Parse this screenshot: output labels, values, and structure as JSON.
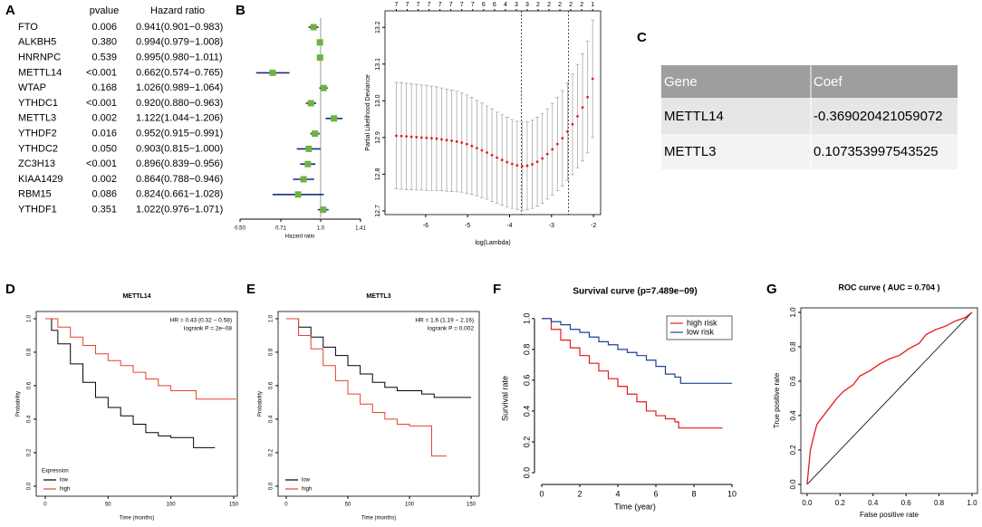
{
  "panels": [
    "A",
    "B",
    "C",
    "D",
    "E",
    "F",
    "G"
  ],
  "chart_data": [
    {
      "type": "forest",
      "headers": [
        "pvalue",
        "Hazard ratio"
      ],
      "categories": [
        "FTO",
        "ALKBH5",
        "HNRNPC",
        "METTL14",
        "WTAP",
        "YTHDC1",
        "METTL3",
        "YTHDF2",
        "YTHDC2",
        "ZC3H13",
        "KIAA1429",
        "RBM15",
        "YTHDF1"
      ],
      "pvalues": [
        "0.006",
        "0.380",
        "0.539",
        "<0.001",
        "0.168",
        "<0.001",
        "0.002",
        "0.016",
        "0.050",
        "<0.001",
        "0.002",
        "0.086",
        "0.351"
      ],
      "values": [
        0.941,
        0.994,
        0.995,
        0.662,
        1.026,
        0.92,
        1.122,
        0.952,
        0.903,
        0.896,
        0.864,
        0.824,
        1.022
      ],
      "lower": [
        0.901,
        0.979,
        0.98,
        0.574,
        0.989,
        0.88,
        1.044,
        0.915,
        0.815,
        0.839,
        0.788,
        0.661,
        0.976
      ],
      "upper": [
        0.983,
        1.008,
        1.011,
        0.765,
        1.064,
        0.963,
        1.206,
        0.991,
        1.0,
        0.956,
        0.946,
        1.028,
        1.071
      ],
      "value_labels": [
        "0.941(0.901−0.983)",
        "0.994(0.979−1.008)",
        "0.995(0.980−1.011)",
        "0.662(0.574−0.765)",
        "1.026(0.989−1.064)",
        "0.920(0.880−0.963)",
        "1.122(1.044−1.206)",
        "0.952(0.915−0.991)",
        "0.903(0.815−1.000)",
        "0.896(0.839−0.956)",
        "0.864(0.788−0.946)",
        "0.824(0.661−1.028)",
        "1.022(0.976−1.071)"
      ],
      "xlim": [
        0.5,
        1.41
      ],
      "log_x": true,
      "xticks": [
        {
          "value": 0.5,
          "label": "0.50"
        },
        0.71,
        {
          "value": 1,
          "label": "1.0"
        },
        1.41
      ],
      "reference": 1,
      "xlabel": "Hazard ratio",
      "color": "#6db33f",
      "ci_color": "#1f2a80"
    },
    {
      "type": "cv",
      "xlabel": "log(Lambda)",
      "ylabel": "Partial Likelihood Deviance",
      "x": [
        -6.7,
        -6.58,
        -6.46,
        -6.34,
        -6.22,
        -6.1,
        -5.98,
        -5.86,
        -5.74,
        -5.62,
        -5.5,
        -5.38,
        -5.26,
        -5.14,
        -5.02,
        -4.9,
        -4.78,
        -4.66,
        -4.54,
        -4.42,
        -4.3,
        -4.18,
        -4.06,
        -3.94,
        -3.82,
        -3.7,
        -3.58,
        -3.46,
        -3.34,
        -3.22,
        -3.1,
        -2.98,
        -2.86,
        -2.74,
        -2.62,
        -2.5,
        -2.38,
        -2.26,
        -2.14,
        -2.02
      ],
      "values": [
        12.905,
        12.904,
        12.903,
        12.902,
        12.901,
        12.9,
        12.899,
        12.898,
        12.897,
        12.895,
        12.893,
        12.891,
        12.889,
        12.886,
        12.882,
        12.877,
        12.871,
        12.865,
        12.859,
        12.852,
        12.845,
        12.839,
        12.833,
        12.828,
        12.824,
        12.822,
        12.823,
        12.827,
        12.834,
        12.843,
        12.855,
        12.868,
        12.882,
        12.898,
        12.916,
        12.936,
        12.958,
        12.982,
        13.01,
        13.06
      ],
      "errors": [
        0.145,
        0.145,
        0.145,
        0.144,
        0.144,
        0.143,
        0.143,
        0.142,
        0.141,
        0.14,
        0.139,
        0.138,
        0.137,
        0.135,
        0.134,
        0.132,
        0.13,
        0.129,
        0.127,
        0.126,
        0.124,
        0.123,
        0.122,
        0.121,
        0.12,
        0.12,
        0.12,
        0.12,
        0.121,
        0.122,
        0.123,
        0.125,
        0.127,
        0.13,
        0.133,
        0.137,
        0.141,
        0.146,
        0.152,
        0.16
      ],
      "xlim": [
        -6.97,
        -1.83
      ],
      "ylim": [
        12.69,
        13.245
      ],
      "xticks": [
        -6,
        -5,
        -4,
        -3,
        -2
      ],
      "yticks": [
        12.7,
        12.8,
        12.9,
        {
          "value": 13,
          "label": "13.0"
        },
        13.1,
        13.2
      ],
      "top_ticks": [
        {
          "value": -6.7,
          "label": "7"
        },
        {
          "value": -6.44,
          "label": "7"
        },
        {
          "value": -6.18,
          "label": "7"
        },
        {
          "value": -5.92,
          "label": "7"
        },
        {
          "value": -5.66,
          "label": "7"
        },
        {
          "value": -5.4,
          "label": "7"
        },
        {
          "value": -5.14,
          "label": "7"
        },
        {
          "value": -4.88,
          "label": "7"
        },
        {
          "value": -4.62,
          "label": "6"
        },
        {
          "value": -4.36,
          "label": "6"
        },
        {
          "value": -4.1,
          "label": "4"
        },
        {
          "value": -3.84,
          "label": "3"
        },
        {
          "value": -3.58,
          "label": "3"
        },
        {
          "value": -3.32,
          "label": "2"
        },
        {
          "value": -3.06,
          "label": "2"
        },
        {
          "value": -2.8,
          "label": "2"
        },
        {
          "value": -2.54,
          "label": "2"
        },
        {
          "value": -2.28,
          "label": "2"
        },
        {
          "value": -2.02,
          "label": "1"
        }
      ],
      "vlines": [
        -3.72,
        -2.6
      ],
      "color": "#e02020",
      "error_color": "#aaaaaa"
    },
    {
      "type": "table",
      "header": [
        "Gene",
        "Coef"
      ],
      "rows": [
        [
          "METTL14",
          "-0.369020421059072"
        ],
        [
          "METTL3",
          "0.107353997543525"
        ]
      ]
    },
    {
      "type": "km",
      "title": "METTL14",
      "xlabel": "Time (months)",
      "ylabel": "Probability",
      "annotations": [
        "HR = 0.43 (0.32 − 0.58)",
        "logrank P = 2e−08"
      ],
      "legend_title": "Expression",
      "legend": "bottomleft",
      "xlim": [
        -7.2,
        152.9
      ],
      "ylim": [
        -0.06,
        1.043
      ],
      "xticks": [
        0,
        50,
        100,
        150
      ],
      "yticks": [
        {
          "value": 0,
          "label": "0.0"
        },
        0.2,
        0.4,
        0.6,
        0.8,
        {
          "value": 1,
          "label": "1.0"
        }
      ],
      "series": [
        {
          "name": "low",
          "color": "#000000",
          "x": [
            0,
            5,
            10,
            20,
            30,
            40,
            50,
            60,
            70,
            80,
            90,
            100,
            110,
            118,
            135
          ],
          "values": [
            1,
            0.93,
            0.85,
            0.73,
            0.62,
            0.53,
            0.47,
            0.42,
            0.37,
            0.32,
            0.3,
            0.29,
            0.29,
            0.23,
            0.23
          ]
        },
        {
          "name": "high",
          "color": "#e8412c",
          "x": [
            0,
            10,
            20,
            30,
            40,
            50,
            60,
            70,
            80,
            90,
            100,
            110,
            120,
            152
          ],
          "values": [
            1,
            0.95,
            0.89,
            0.84,
            0.79,
            0.75,
            0.72,
            0.68,
            0.64,
            0.6,
            0.57,
            0.57,
            0.52,
            0.52
          ]
        }
      ]
    },
    {
      "type": "km",
      "title": "METTL3",
      "xlabel": "Time (months)",
      "ylabel": "Probability",
      "annotations": [
        "HR = 1.6 (1.19 − 2.16)",
        "logrank P = 0.002"
      ],
      "legend": "bottomleft",
      "xlim": [
        -6.6,
        156.6
      ],
      "ylim": [
        -0.06,
        1.043
      ],
      "xticks": [
        0,
        50,
        100,
        150
      ],
      "yticks": [
        {
          "value": 0,
          "label": "0.0"
        },
        0.2,
        0.4,
        0.6,
        0.8,
        {
          "value": 1,
          "label": "1.0"
        }
      ],
      "series": [
        {
          "name": "low",
          "color": "#000000",
          "x": [
            0,
            10,
            20,
            30,
            40,
            50,
            60,
            70,
            80,
            90,
            100,
            110,
            120,
            150
          ],
          "values": [
            1,
            0.95,
            0.89,
            0.83,
            0.78,
            0.72,
            0.67,
            0.62,
            0.59,
            0.57,
            0.57,
            0.55,
            0.53,
            0.53
          ]
        },
        {
          "name": "high",
          "color": "#e8412c",
          "x": [
            0,
            10,
            20,
            30,
            40,
            50,
            60,
            70,
            80,
            90,
            100,
            110,
            118,
            130
          ],
          "values": [
            1,
            0.9,
            0.82,
            0.72,
            0.63,
            0.55,
            0.49,
            0.44,
            0.4,
            0.37,
            0.36,
            0.36,
            0.18,
            0.18
          ]
        }
      ]
    },
    {
      "type": "surv",
      "title": "Survival curve (p=7.489e−09)",
      "xlabel": "Time (year)",
      "ylabel": "Survival rate",
      "legend": "topright",
      "xlim": [
        -0.38,
        10.19
      ],
      "ylim": [
        -0.076,
        1.04
      ],
      "xticks": [
        0,
        2,
        4,
        6,
        8,
        10
      ],
      "yticks": [
        {
          "value": 0,
          "label": "0.0"
        },
        0.2,
        0.4,
        0.6,
        0.8,
        {
          "value": 1,
          "label": "1.0"
        }
      ],
      "series": [
        {
          "name": "high risk",
          "color": "#e41a1c",
          "x": [
            0,
            0.5,
            1,
            1.5,
            2,
            2.5,
            3,
            3.5,
            4,
            4.5,
            5,
            5.5,
            6,
            6.5,
            7,
            7.2,
            9.5
          ],
          "values": [
            1,
            0.93,
            0.86,
            0.81,
            0.76,
            0.71,
            0.66,
            0.61,
            0.56,
            0.51,
            0.46,
            0.4,
            0.37,
            0.35,
            0.33,
            0.29,
            0.29
          ]
        },
        {
          "name": "low risk",
          "color": "#1f3f9a",
          "x": [
            0,
            0.5,
            1,
            1.5,
            2,
            2.5,
            3,
            3.5,
            4,
            4.5,
            5,
            5.5,
            6,
            6.5,
            7,
            7.3,
            10
          ],
          "values": [
            1,
            0.98,
            0.96,
            0.93,
            0.91,
            0.88,
            0.85,
            0.83,
            0.8,
            0.78,
            0.76,
            0.73,
            0.69,
            0.64,
            0.62,
            0.58,
            0.58
          ]
        }
      ]
    },
    {
      "type": "roc",
      "title": "ROC curve ( AUC =  0.704 )",
      "xlabel": "False positive rate",
      "ylabel": "True positive rate",
      "xlim": [
        -0.038,
        1.033
      ],
      "ylim": [
        -0.053,
        1.026
      ],
      "xticks": [
        {
          "value": 0,
          "label": "0.0"
        },
        0.2,
        0.4,
        0.6,
        0.8,
        {
          "value": 1,
          "label": "1.0"
        }
      ],
      "yticks": [
        {
          "value": 0,
          "label": "0.0"
        },
        0.2,
        0.4,
        0.6,
        0.8,
        {
          "value": 1,
          "label": "1.0"
        }
      ],
      "color": "#e41a1c",
      "x": [
        0,
        0.01,
        0.02,
        0.04,
        0.06,
        0.1,
        0.14,
        0.18,
        0.22,
        0.28,
        0.32,
        0.38,
        0.44,
        0.5,
        0.56,
        0.62,
        0.68,
        0.72,
        0.78,
        0.84,
        0.9,
        0.96,
        1
      ],
      "values": [
        0,
        0.1,
        0.2,
        0.28,
        0.35,
        0.4,
        0.45,
        0.5,
        0.54,
        0.58,
        0.63,
        0.66,
        0.7,
        0.73,
        0.75,
        0.79,
        0.82,
        0.87,
        0.9,
        0.92,
        0.95,
        0.97,
        1
      ]
    }
  ]
}
